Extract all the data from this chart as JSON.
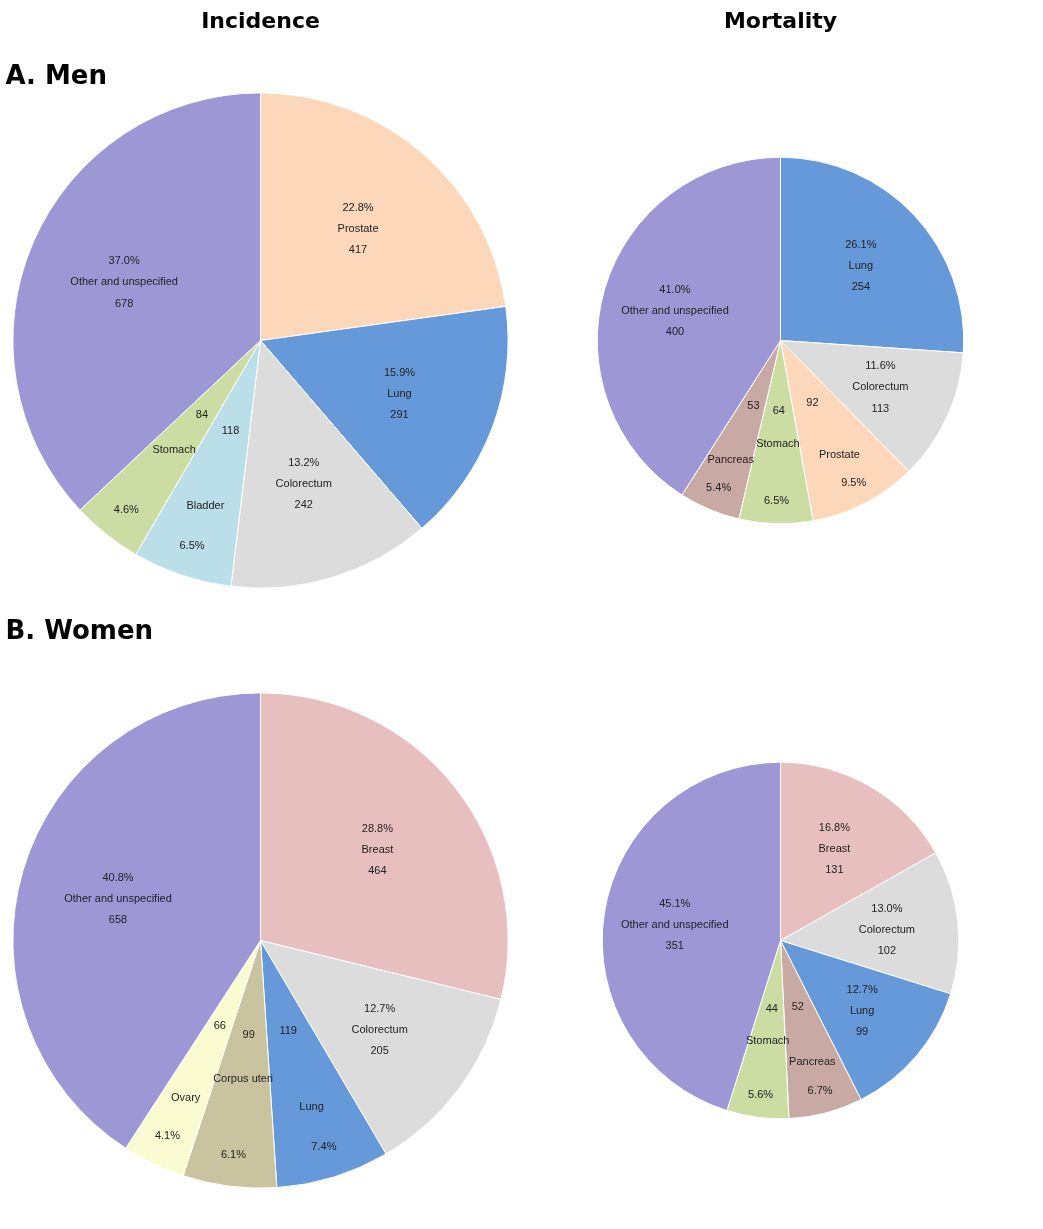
{
  "chart_data": [
    {
      "type": "pie",
      "title": "Incidence",
      "categories": [
        "Prostate",
        "Lung",
        "Colorectum",
        "Bladder",
        "Stomach",
        "Other and unspecified"
      ],
      "values": [
        22.8,
        15.9,
        13.2,
        6.5,
        4.6,
        37.0
      ],
      "value_labels": [
        "22.8%",
        "15.9%",
        "13.2%",
        "6.5%",
        "4.6%",
        "37.0%"
      ],
      "colors": [
        "#fcd7b9",
        "#6699d9",
        "#dcdcdc",
        "#badfe9",
        "#cbdda3",
        "#9d97d6"
      ],
      "annotations": [
        "A. Men",
        {
          "text": "417",
          "x": "Prostate"
        },
        {
          "text": "291",
          "x": "Lung"
        },
        {
          "text": "242",
          "x": "Colorectum"
        },
        {
          "text": "118",
          "x": "Bladder"
        },
        {
          "text": "84",
          "x": "Stomach"
        },
        {
          "text": "678",
          "x": "Other and unspecified"
        }
      ]
    },
    {
      "type": "pie",
      "title": "Mortality",
      "categories": [
        "Lung",
        "Colorectum",
        "Prostate",
        "Stomach",
        "Pancreas",
        "Other and unspecified"
      ],
      "values": [
        26.1,
        11.6,
        9.5,
        6.5,
        5.4,
        41.0
      ],
      "value_labels": [
        "26.1%",
        "11.6%",
        "9.5%",
        "6.5%",
        "5.4%",
        "41.0%"
      ],
      "colors": [
        "#6699d9",
        "#dcdcdc",
        "#fcd7b9",
        "#cbdda3",
        "#c9a9a3",
        "#9d97d6"
      ],
      "annotations": [
        {
          "text": "254",
          "x": "Lung"
        },
        {
          "text": "113",
          "x": "Colorectum"
        },
        {
          "text": "92",
          "x": "Prostate"
        },
        {
          "text": "64",
          "x": "Stomach"
        },
        {
          "text": "53",
          "x": "Pancreas"
        },
        {
          "text": "400",
          "x": "Other and unspecified"
        }
      ]
    },
    {
      "type": "pie",
      "categories": [
        "Breast",
        "Colorectum",
        "Lung",
        "Corpus uteri",
        "Ovary",
        "Other and unspecified"
      ],
      "values": [
        28.8,
        12.7,
        7.4,
        6.1,
        4.1,
        40.8
      ],
      "value_labels": [
        "28.8%",
        "12.7%",
        "7.4%",
        "6.1%",
        "4.1%",
        "40.8%"
      ],
      "colors": [
        "#e7bfbe",
        "#dcdcdc",
        "#6699d9",
        "#c9c39f",
        "#fbfbd1",
        "#9d97d6"
      ],
      "annotations": [
        "B. Women",
        {
          "text": "464",
          "x": "Breast"
        },
        {
          "text": "205",
          "x": "Colorectum"
        },
        {
          "text": "119",
          "x": "Lung"
        },
        {
          "text": "99",
          "x": "Corpus uteri"
        },
        {
          "text": "66",
          "x": "Ovary"
        },
        {
          "text": "658",
          "x": "Other and unspecified"
        }
      ]
    },
    {
      "type": "pie",
      "categories": [
        "Breast",
        "Colorectum",
        "Lung",
        "Pancreas",
        "Stomach",
        "Other and unspecified"
      ],
      "values": [
        16.8,
        13.0,
        12.7,
        6.7,
        5.6,
        45.1
      ],
      "value_labels": [
        "16.8%",
        "13.0%",
        "12.7%",
        "6.7%",
        "5.6%",
        "45.1%"
      ],
      "colors": [
        "#e7bfbe",
        "#dcdcdc",
        "#6699d9",
        "#c9a9a3",
        "#cbdda3",
        "#9d97d6"
      ],
      "annotations": [
        {
          "text": "131",
          "x": "Breast"
        },
        {
          "text": "102",
          "x": "Colorectum"
        },
        {
          "text": "99",
          "x": "Lung"
        },
        {
          "text": "52",
          "x": "Pancreas"
        },
        {
          "text": "44",
          "x": "Stomach"
        },
        {
          "text": "351",
          "x": "Other and unspecified"
        }
      ]
    }
  ]
}
